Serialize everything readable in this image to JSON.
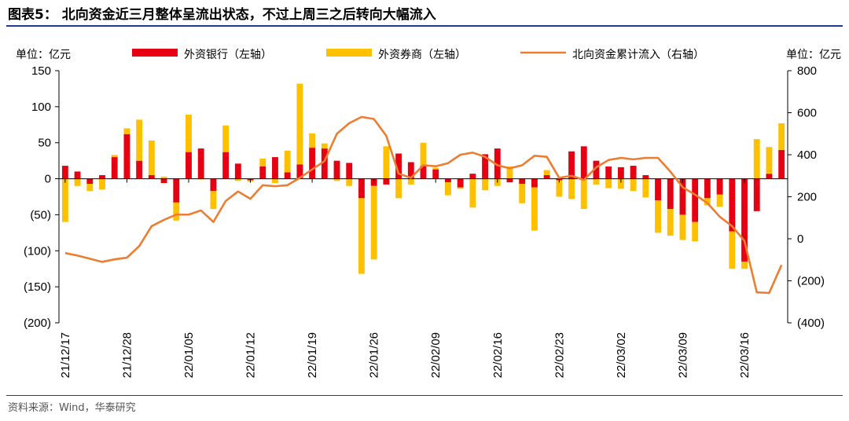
{
  "title": "图表5：  北向资金近三月整体呈流出状态，不过上周三之后转向大幅流入",
  "source": "资料来源：Wind，华泰研究",
  "colors": {
    "bank": "#e60012",
    "broker": "#ffc000",
    "cumulative": "#ed7d31",
    "rule": "#1f3a93"
  },
  "chart_data": {
    "type": "bar+line",
    "left_unit": "单位：亿元",
    "right_unit": "单位：亿元",
    "legend": {
      "bank": "外资银行（左轴）",
      "broker": "外资券商（左轴）",
      "cumulative": "北向资金累计流入（右轴）"
    },
    "left_axis": {
      "min": -200,
      "max": 150,
      "ticks": [
        150,
        100,
        50,
        0,
        -50,
        -100,
        -150,
        -200
      ],
      "tick_labels": [
        "150",
        "100",
        "50",
        "0",
        "(50)",
        "(100)",
        "(150)",
        "(200)"
      ]
    },
    "right_axis": {
      "min": -400,
      "max": 800,
      "ticks": [
        800,
        600,
        400,
        200,
        0,
        -200,
        -400
      ],
      "tick_labels": [
        "800",
        "600",
        "400",
        "200",
        "0",
        "(200)",
        "(400)"
      ]
    },
    "x_tick_labels": [
      "21/12/17",
      "21/12/28",
      "22/01/05",
      "22/01/12",
      "22/01/19",
      "22/01/26",
      "22/02/09",
      "22/02/16",
      "22/02/23",
      "22/03/02",
      "22/03/09",
      "22/03/16"
    ],
    "series": [
      {
        "name": "外资银行（左轴）",
        "values": [
          18,
          10,
          -7,
          5,
          30,
          62,
          25,
          5,
          -6,
          -33,
          37,
          42,
          -17,
          37,
          21,
          -2,
          17,
          30,
          9,
          20,
          43,
          42,
          25,
          22,
          -27,
          -10,
          -8,
          35,
          23,
          18,
          13,
          -5,
          -12,
          7,
          34,
          42,
          -5,
          -7,
          -12,
          5,
          -2,
          38,
          45,
          25,
          17,
          16,
          18,
          5,
          -30,
          -42,
          -50,
          -60,
          -27,
          -22,
          -73,
          -115,
          -45,
          7,
          40
        ]
      },
      {
        "name": "外资券商（左轴）",
        "values": [
          -60,
          -10,
          -10,
          -15,
          3,
          8,
          57,
          48,
          3,
          -25,
          52,
          -1,
          -25,
          37,
          -3,
          -2,
          11,
          -6,
          30,
          112,
          20,
          7,
          -3,
          -10,
          -105,
          -102,
          45,
          -27,
          -8,
          32,
          2,
          -18,
          -2,
          -40,
          -16,
          -10,
          17,
          -27,
          -60,
          7,
          -23,
          -28,
          -42,
          -8,
          -13,
          -14,
          -17,
          -26,
          -45,
          -37,
          -35,
          -27,
          -10,
          -17,
          -52,
          -10,
          55,
          37,
          37
        ]
      },
      {
        "name": "北向资金累计流入（右轴）",
        "values": [
          -68,
          -80,
          -95,
          -110,
          -98,
          -90,
          -35,
          60,
          90,
          115,
          115,
          135,
          80,
          180,
          225,
          190,
          255,
          250,
          255,
          290,
          330,
          370,
          500,
          550,
          580,
          570,
          490,
          310,
          290,
          350,
          345,
          360,
          400,
          410,
          390,
          350,
          335,
          350,
          395,
          390,
          290,
          300,
          280,
          340,
          375,
          385,
          378,
          385,
          385,
          320,
          245,
          210,
          170,
          105,
          60,
          -10,
          -255,
          -258,
          -125
        ]
      }
    ]
  }
}
